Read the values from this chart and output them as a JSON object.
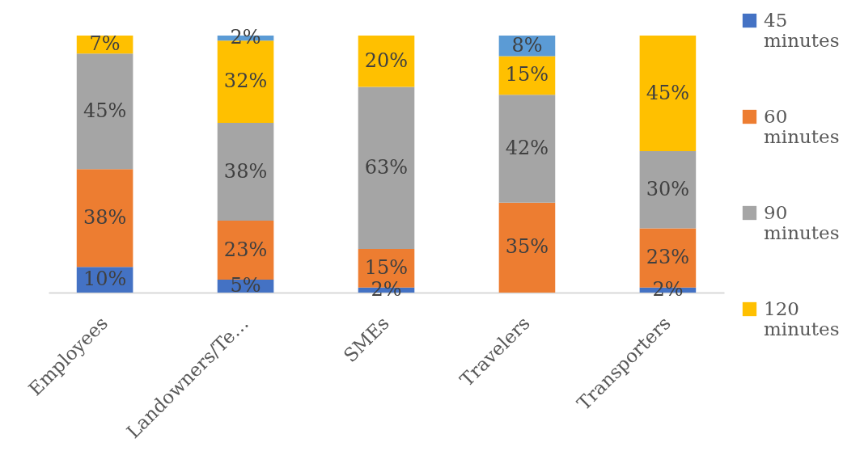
{
  "chart_data": {
    "type": "bar",
    "stacked": true,
    "categories": [
      "Employees",
      "Landowners/Te…",
      "SMEs",
      "Travelers",
      "Transporters"
    ],
    "series": [
      {
        "name": "45 minutes",
        "color": "#4472c4",
        "values": [
          10,
          5,
          2,
          null,
          2
        ],
        "value_labels": [
          "10%",
          "5%",
          "2%",
          null,
          "2%"
        ]
      },
      {
        "name": "60 minutes",
        "color": "#ed7d31",
        "values": [
          38,
          23,
          15,
          35,
          23
        ],
        "value_labels": [
          "38%",
          "23%",
          "15%",
          "35%",
          "23%"
        ]
      },
      {
        "name": "90 minutes",
        "color": "#a5a5a5",
        "values": [
          45,
          38,
          63,
          42,
          30
        ],
        "value_labels": [
          "45%",
          "38%",
          "63%",
          "42%",
          "30%"
        ]
      },
      {
        "name": "120 minutes",
        "color": "#ffc000",
        "values": [
          7,
          32,
          20,
          15,
          45
        ],
        "value_labels": [
          "7%",
          "32%",
          "20%",
          "15%",
          "45%"
        ]
      },
      {
        "color": "#5b9bd5",
        "values": [
          null,
          2,
          null,
          8,
          null
        ],
        "value_labels": [
          null,
          "2%",
          null,
          "8%",
          null
        ]
      }
    ],
    "ylim": [
      0,
      100
    ],
    "tick_labels": "x",
    "legend": "right"
  }
}
